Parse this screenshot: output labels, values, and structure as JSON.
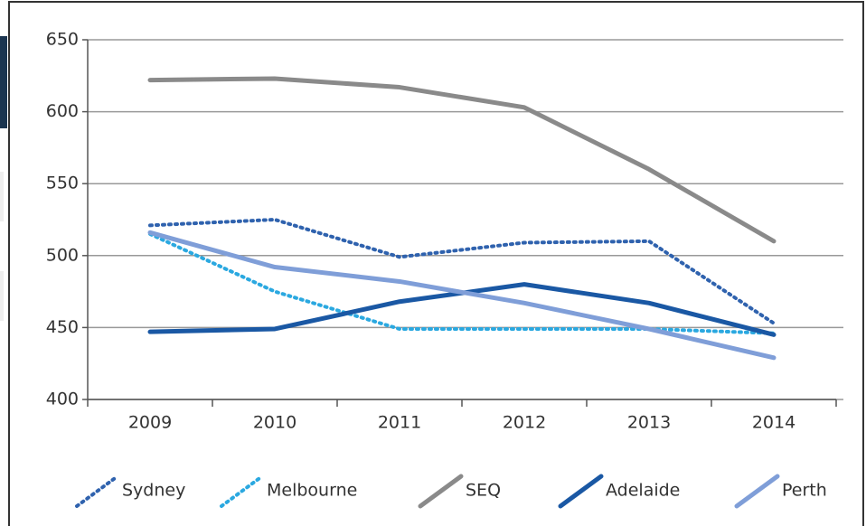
{
  "chart_data": {
    "type": "line",
    "categories": [
      "2009",
      "2010",
      "2011",
      "2012",
      "2013",
      "2014"
    ],
    "series": [
      {
        "name": "Sydney",
        "color": "#2f62ae",
        "style": "dotted",
        "values": [
          521,
          525,
          499,
          509,
          510,
          453
        ]
      },
      {
        "name": "Melbourne",
        "color": "#2aa8e0",
        "style": "dotted",
        "values": [
          515,
          475,
          449,
          449,
          449,
          446
        ]
      },
      {
        "name": "SEQ",
        "color": "#8a8a8a",
        "style": "solid",
        "values": [
          622,
          623,
          617,
          603,
          560,
          510
        ]
      },
      {
        "name": "Adelaide",
        "color": "#1a58a4",
        "style": "solid",
        "values": [
          447,
          449,
          468,
          480,
          467,
          445
        ]
      },
      {
        "name": "Perth",
        "color": "#7f9ed8",
        "style": "solid",
        "values": [
          516,
          492,
          482,
          467,
          449,
          429
        ]
      }
    ],
    "ylim": [
      400,
      650
    ],
    "yticks": [
      400,
      450,
      500,
      550,
      600,
      650
    ],
    "grid": true
  }
}
